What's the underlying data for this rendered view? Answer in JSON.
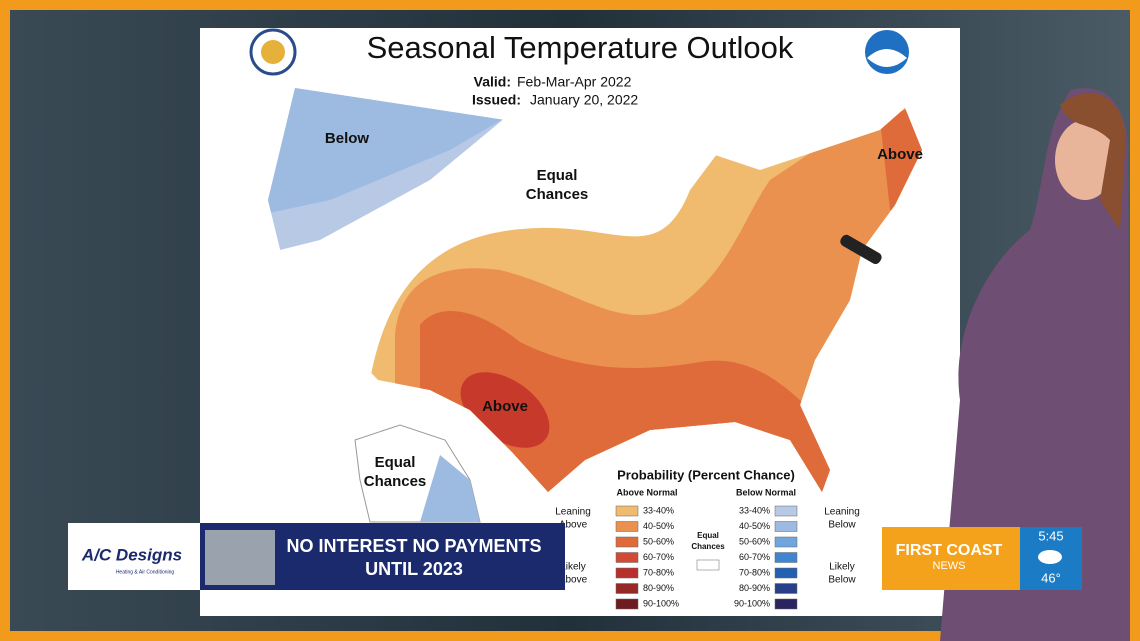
{
  "header": {
    "title": "Seasonal Temperature Outlook",
    "valid_label": "Valid:",
    "valid": "Feb-Mar-Apr 2022",
    "issued_label": "Issued:",
    "issued": "January 20, 2022"
  },
  "map_labels": [
    [
      "Below"
    ],
    [
      "Equal",
      "Chances"
    ],
    [
      "Above"
    ],
    [
      "Above"
    ],
    [
      "Equal",
      "Chances"
    ]
  ],
  "legend": {
    "title": "Probability (Percent Chance)",
    "above_heading": "Above Normal",
    "below_heading": "Below Normal",
    "above_levels": [
      "33-40%",
      "40-50%",
      "50-60%",
      "60-70%",
      "70-80%",
      "80-90%",
      "90-100%"
    ],
    "below_levels": [
      "33-40%",
      "40-50%",
      "50-60%",
      "60-70%",
      "70-80%",
      "80-90%",
      "90-100%"
    ],
    "leaning_above": [
      "Leaning",
      "Above"
    ],
    "likely_above": [
      "Likely",
      "Above"
    ],
    "equal_chances": [
      "Equal",
      "Chances"
    ],
    "leaning_below": [
      "Leaning",
      "Below"
    ],
    "likely_below": [
      "Likely",
      "Below"
    ]
  },
  "ad": {
    "brand": "A/C Designs",
    "tagline": "Heating & Air Conditioning",
    "line1": "NO INTEREST NO PAYMENTS",
    "line2": "UNTIL 2023"
  },
  "station": {
    "name": "FIRST COAST",
    "sub": "NEWS",
    "time": "5:45",
    "temp": "46°"
  }
}
